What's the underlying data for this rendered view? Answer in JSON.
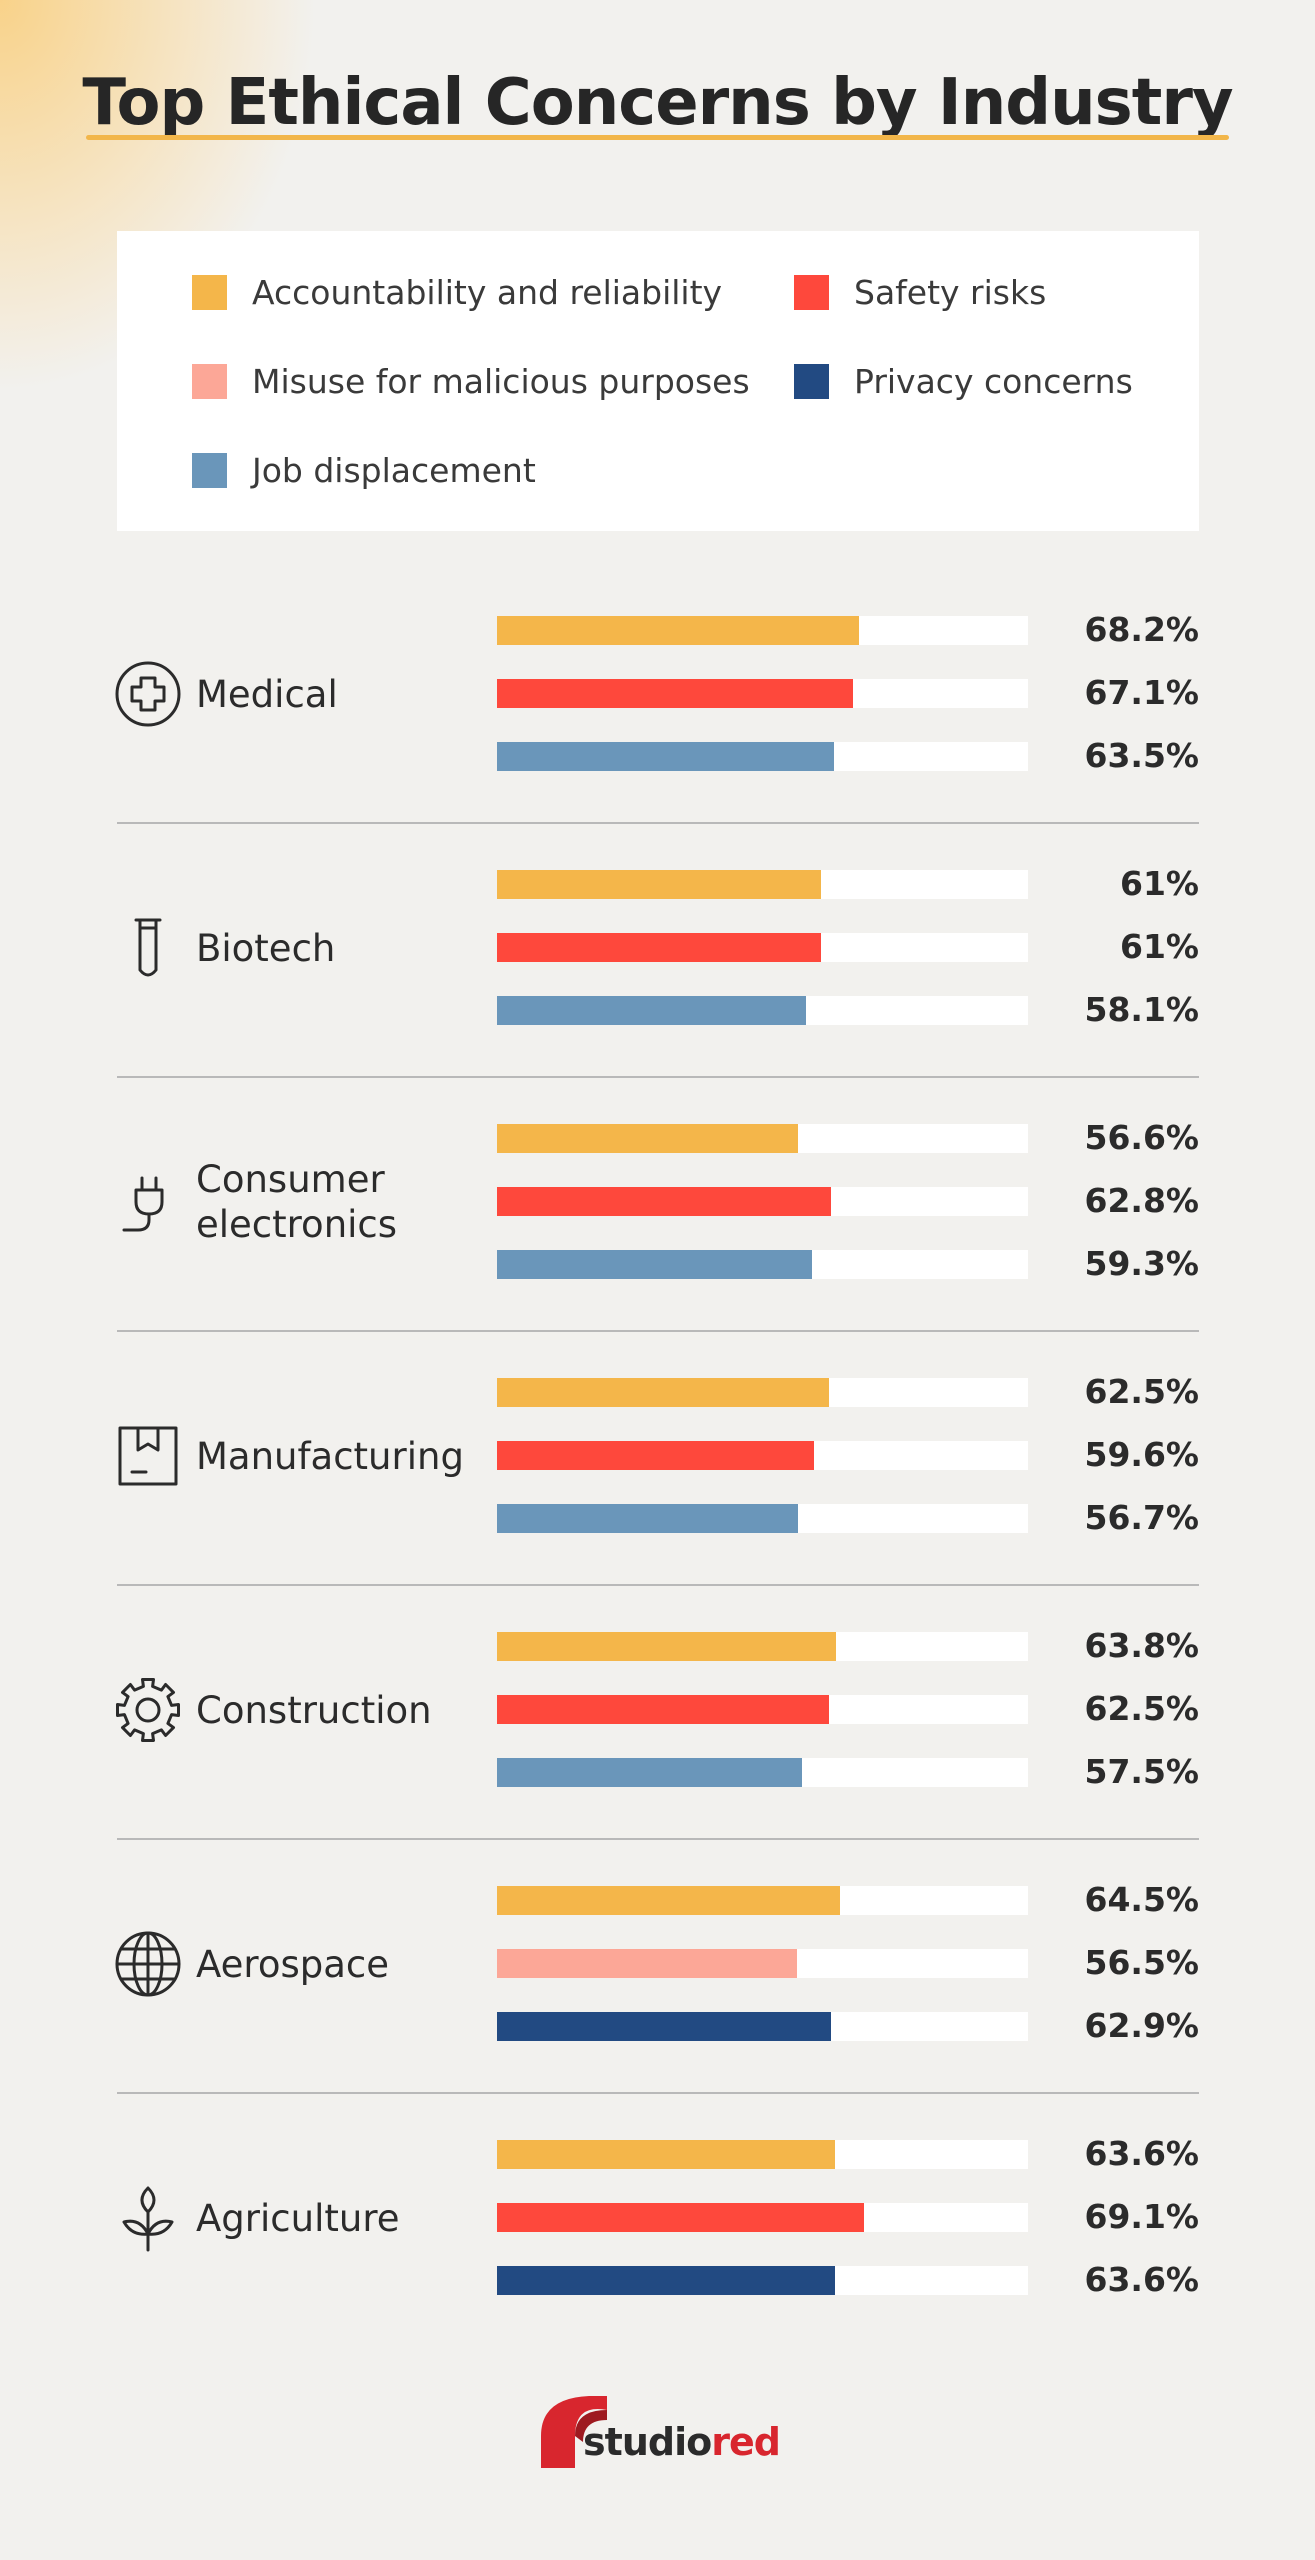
{
  "colors": {
    "background": "#f2f1ee",
    "accountability": "#f4b64a",
    "safety": "#fe483c",
    "misuse": "#fca797",
    "privacy": "#224a82",
    "job": "#6a96ba",
    "brand_red": "#d8262e"
  },
  "chart_data": {
    "type": "bar",
    "orientation": "horizontal",
    "title": "Top Ethical Concerns by Industry",
    "unit": "%",
    "xlim": [
      0,
      100
    ],
    "legend": [
      {
        "key": "accountability",
        "label": "Accountability and reliability"
      },
      {
        "key": "safety",
        "label": "Safety risks"
      },
      {
        "key": "misuse",
        "label": "Misuse for malicious purposes"
      },
      {
        "key": "privacy",
        "label": "Privacy concerns"
      },
      {
        "key": "job",
        "label": "Job displacement"
      }
    ],
    "categories": [
      "Medical",
      "Biotech",
      "Consumer electronics",
      "Manufacturing",
      "Construction",
      "Aerospace",
      "Agriculture"
    ],
    "groups": [
      {
        "label": "Medical",
        "icon": "medical-cross-icon",
        "bars": [
          {
            "series": "accountability",
            "value": 68.2,
            "text": "68.2%"
          },
          {
            "series": "safety",
            "value": 67.1,
            "text": "67.1%"
          },
          {
            "series": "job",
            "value": 63.5,
            "text": "63.5%"
          }
        ]
      },
      {
        "label": "Biotech",
        "icon": "test-tube-icon",
        "bars": [
          {
            "series": "accountability",
            "value": 61,
            "text": "61%"
          },
          {
            "series": "safety",
            "value": 61,
            "text": "61%"
          },
          {
            "series": "job",
            "value": 58.1,
            "text": "58.1%"
          }
        ]
      },
      {
        "label": "Consumer electronics",
        "icon": "plug-icon",
        "bars": [
          {
            "series": "accountability",
            "value": 56.6,
            "text": "56.6%"
          },
          {
            "series": "safety",
            "value": 62.8,
            "text": "62.8%"
          },
          {
            "series": "job",
            "value": 59.3,
            "text": "59.3%"
          }
        ]
      },
      {
        "label": "Manufacturing",
        "icon": "package-icon",
        "bars": [
          {
            "series": "accountability",
            "value": 62.5,
            "text": "62.5%"
          },
          {
            "series": "safety",
            "value": 59.6,
            "text": "59.6%"
          },
          {
            "series": "job",
            "value": 56.7,
            "text": "56.7%"
          }
        ]
      },
      {
        "label": "Construction",
        "icon": "gear-icon",
        "bars": [
          {
            "series": "accountability",
            "value": 63.8,
            "text": "63.8%"
          },
          {
            "series": "safety",
            "value": 62.5,
            "text": "62.5%"
          },
          {
            "series": "job",
            "value": 57.5,
            "text": "57.5%"
          }
        ]
      },
      {
        "label": "Aerospace",
        "icon": "globe-icon",
        "bars": [
          {
            "series": "accountability",
            "value": 64.5,
            "text": "64.5%"
          },
          {
            "series": "misuse",
            "value": 56.5,
            "text": "56.5%"
          },
          {
            "series": "privacy",
            "value": 62.9,
            "text": "62.9%"
          }
        ]
      },
      {
        "label": "Agriculture",
        "icon": "plant-icon",
        "bars": [
          {
            "series": "accountability",
            "value": 63.6,
            "text": "63.6%"
          },
          {
            "series": "safety",
            "value": 69.1,
            "text": "69.1%"
          },
          {
            "series": "privacy",
            "value": 63.6,
            "text": "63.6%"
          }
        ]
      }
    ]
  },
  "brand": {
    "part1": "studio",
    "part2": "red",
    "logo_icon": "studiored-logo-icon"
  }
}
